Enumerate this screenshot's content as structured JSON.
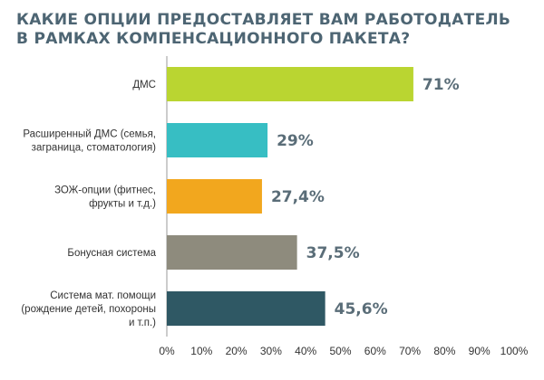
{
  "chart_data": {
    "type": "bar",
    "orientation": "horizontal",
    "title_lines": [
      "КАКИЕ ОПЦИИ ПРЕДОСТАВЛЯЕТ ВАМ РАБОТОДАТЕЛЬ",
      "В РАМКАХ КОМПЕНСАЦИОННОГО ПАКЕТА?"
    ],
    "categories": [
      [
        "ДМС"
      ],
      [
        "Расширенный ДМС (семья,",
        "заграница, стоматология)"
      ],
      [
        "ЗОЖ-опции (фитнес,",
        "фрукты и т.д.)"
      ],
      [
        "Бонусная система"
      ],
      [
        "Система мат. помощи",
        "(рождение детей, похороны",
        "и т.п.)"
      ]
    ],
    "values": [
      71,
      29,
      27.4,
      37.5,
      45.6
    ],
    "value_labels": [
      "71%",
      "29%",
      "27,4%",
      "37,5%",
      "45,6%"
    ],
    "colors": [
      "#bad531",
      "#37bec3",
      "#f2a71e",
      "#8e8b7d",
      "#2f5864"
    ],
    "xlim": [
      0,
      100
    ],
    "x_ticks": [
      "0%",
      "10%",
      "20%",
      "30%",
      "40%",
      "50%",
      "60%",
      "70%",
      "80%",
      "90%",
      "100%"
    ],
    "grid": false,
    "legend": "none"
  }
}
